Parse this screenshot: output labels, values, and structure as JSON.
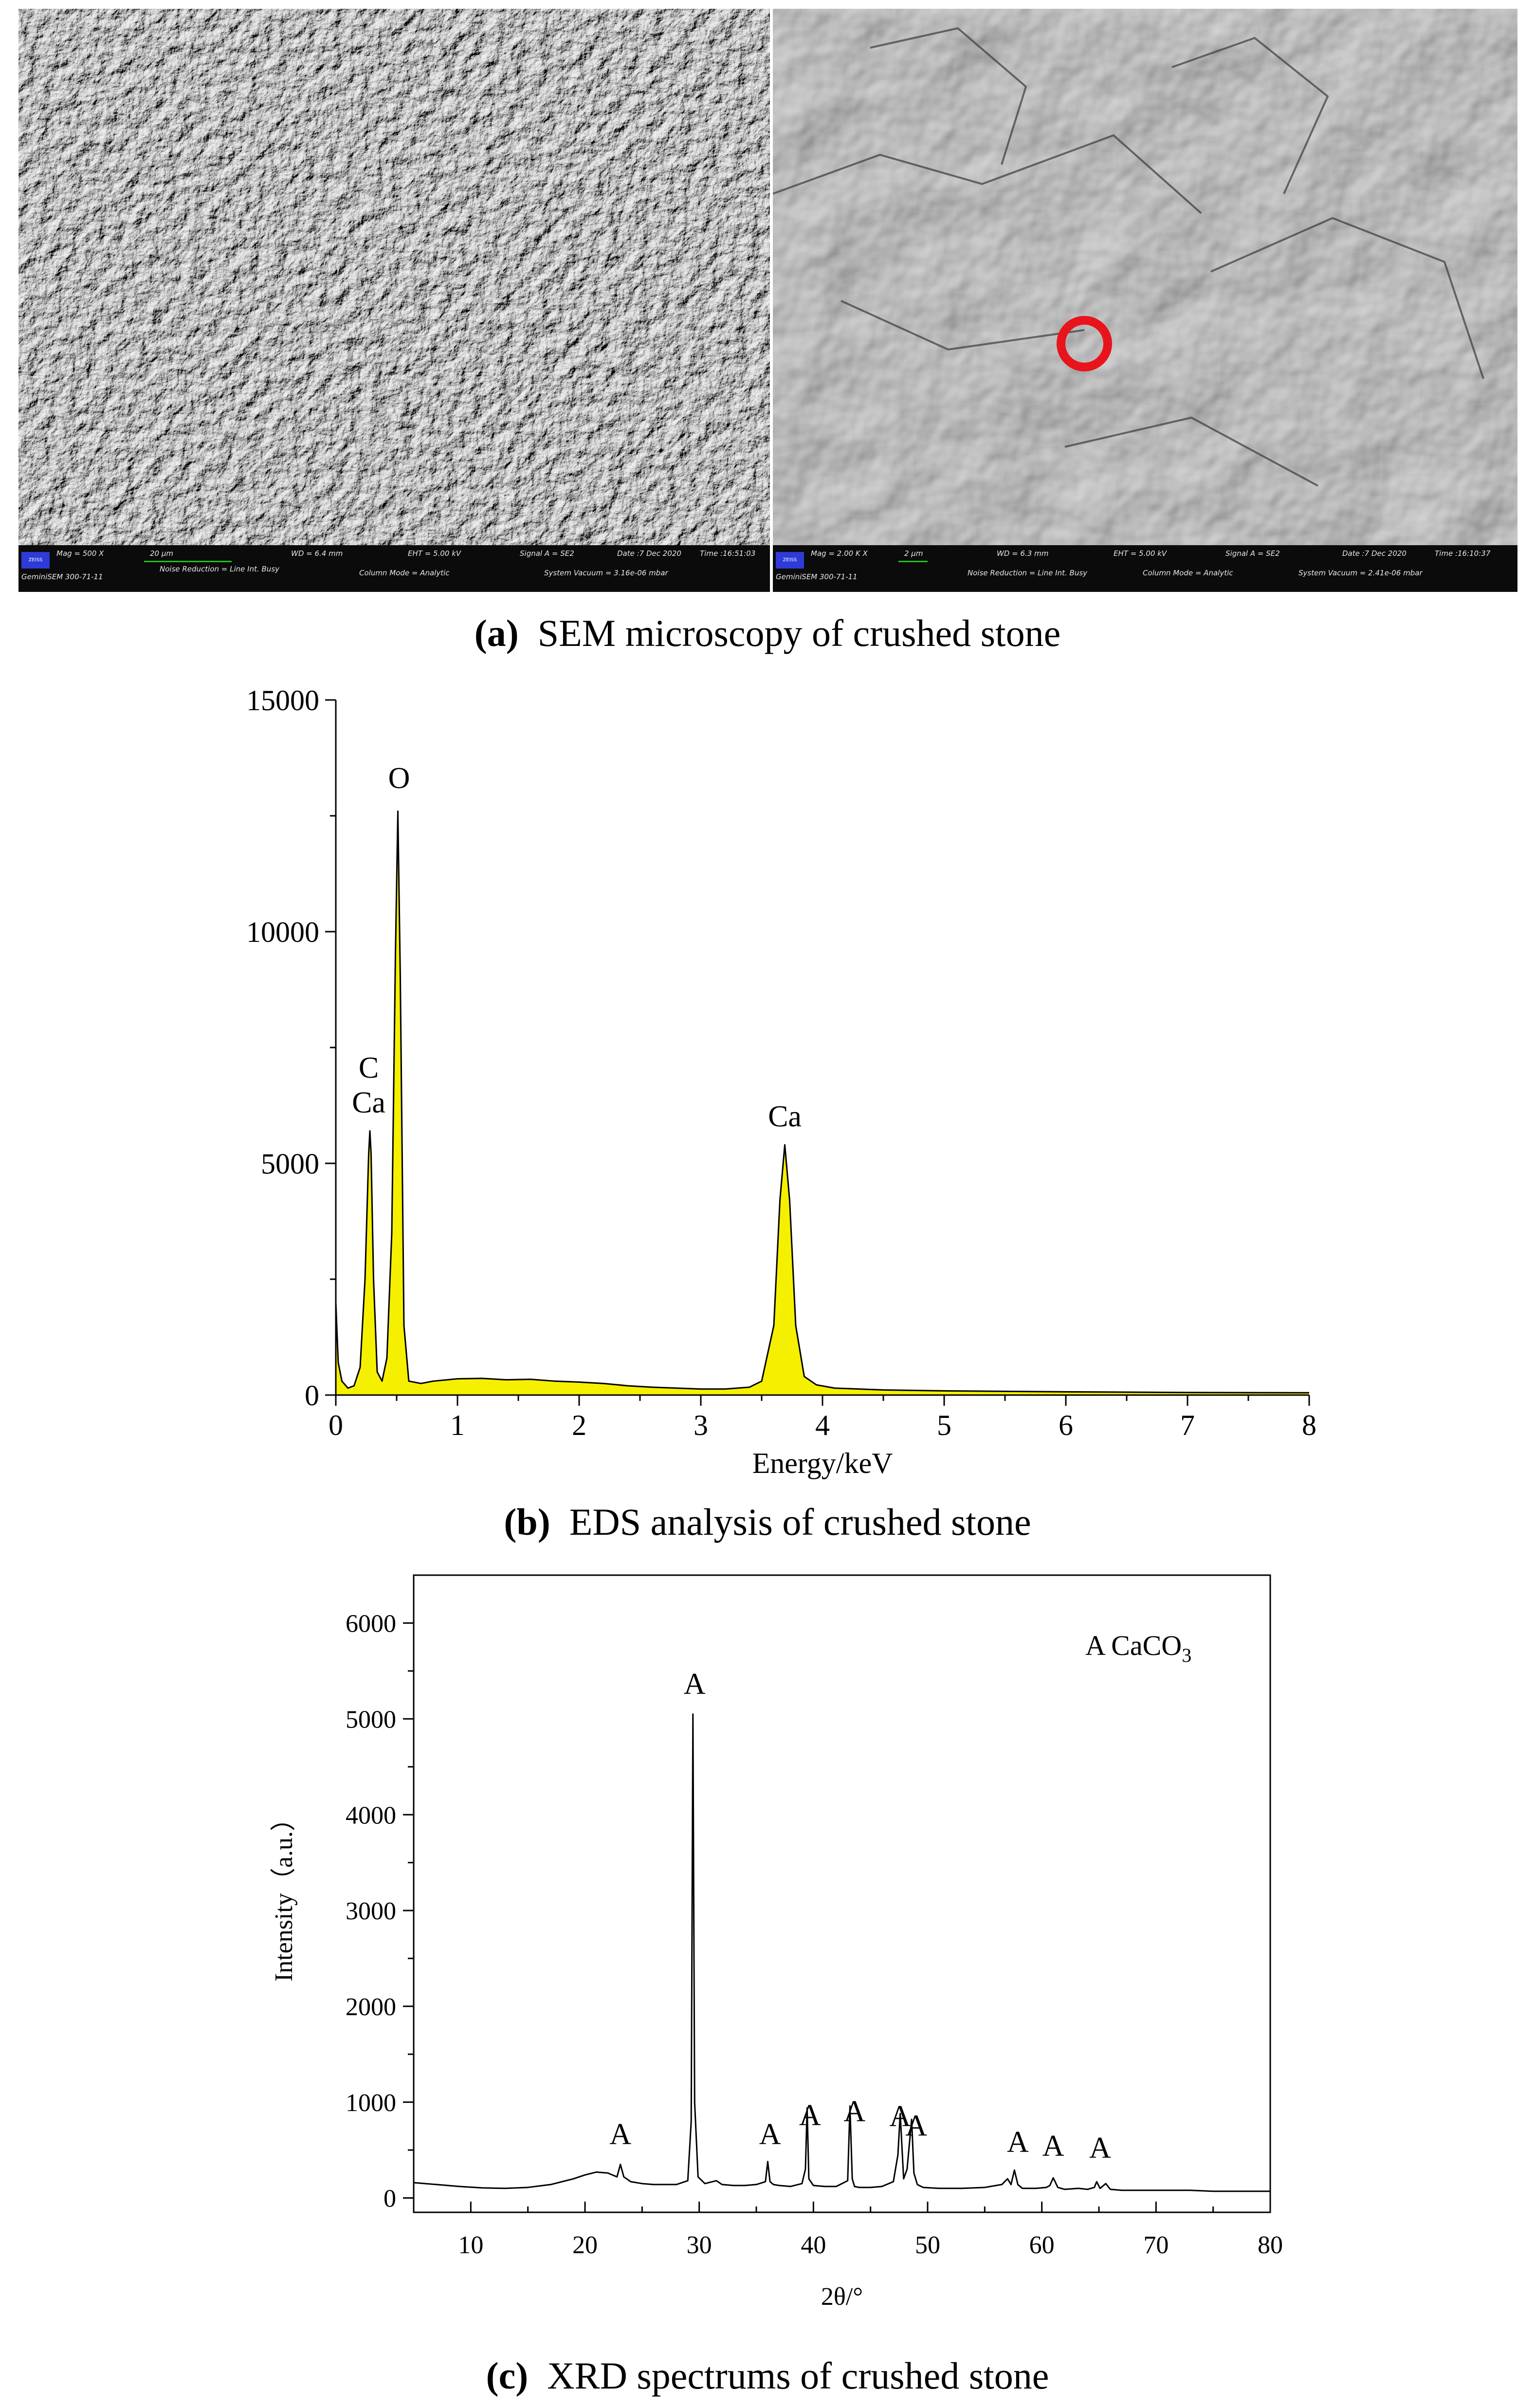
{
  "figure": {
    "panel_a": {
      "caption_label": "(a)",
      "caption_text": "SEM microscopy of crushed stone",
      "left_image": {
        "logo": "ZEISS",
        "mag": "Mag = 500 X",
        "scale_bar": "20 µm",
        "wd": "WD = 6.4 mm",
        "eht": "EHT = 5.00 kV",
        "signal": "Signal A = SE2",
        "date": "Date :7 Dec 2020",
        "time": "Time :16:51:03",
        "instrument": "GeminiSEM 300-71-11",
        "noise": "Noise Reduction = Line Int. Busy",
        "column": "Column Mode = Analytic",
        "vacuum": "System Vacuum = 3.16e-06 mbar"
      },
      "right_image": {
        "logo": "ZEISS",
        "mag": "Mag = 2.00 K X",
        "scale_bar": "2 µm",
        "wd": "WD = 6.3 mm",
        "eht": "EHT = 5.00 kV",
        "signal": "Signal A = SE2",
        "date": "Date :7 Dec 2020",
        "time": "Time :16:10:37",
        "instrument": "GeminiSEM 300-71-11",
        "noise": "Noise Reduction = Line Int. Busy",
        "column": "Column Mode = Analytic",
        "vacuum": "System Vacuum = 2.41e-06 mbar",
        "marker_color": "#e8141c"
      }
    },
    "panel_b": {
      "caption_label": "(b)",
      "caption_text": "EDS analysis of crushed stone",
      "fill_color": "#f5f000"
    },
    "panel_c": {
      "caption_label": "(c)",
      "caption_text": "XRD spectrums of crushed stone",
      "legend_prefix": "A CaCO",
      "legend_sub": "3"
    }
  },
  "chart_data": [
    {
      "type": "area",
      "id": "eds",
      "title": "",
      "xlabel": "Energy/keV",
      "ylabel": "",
      "xlim": [
        0,
        8
      ],
      "ylim": [
        0,
        15000
      ],
      "xticks": [
        0,
        1,
        2,
        3,
        4,
        5,
        6,
        7,
        8
      ],
      "yticks": [
        0,
        5000,
        10000,
        15000
      ],
      "grid": false,
      "x": [
        0,
        0.02,
        0.05,
        0.1,
        0.15,
        0.2,
        0.24,
        0.27,
        0.28,
        0.29,
        0.31,
        0.34,
        0.38,
        0.42,
        0.46,
        0.49,
        0.51,
        0.53,
        0.56,
        0.6,
        0.7,
        0.8,
        1.0,
        1.2,
        1.4,
        1.6,
        1.8,
        2.0,
        2.2,
        2.4,
        2.6,
        2.8,
        3.0,
        3.2,
        3.4,
        3.5,
        3.6,
        3.65,
        3.69,
        3.73,
        3.78,
        3.85,
        3.95,
        4.1,
        4.5,
        5.0,
        6.0,
        7.0,
        8.0
      ],
      "y": [
        2000,
        700,
        300,
        150,
        200,
        600,
        2500,
        5200,
        5700,
        5200,
        2500,
        500,
        300,
        800,
        3500,
        9500,
        12600,
        9000,
        1500,
        300,
        250,
        300,
        350,
        360,
        330,
        340,
        300,
        280,
        250,
        200,
        170,
        150,
        130,
        130,
        170,
        300,
        1500,
        4200,
        5400,
        4200,
        1500,
        400,
        220,
        150,
        110,
        90,
        70,
        55,
        50
      ],
      "annotations": [
        {
          "text": "O",
          "x": 0.52,
          "y": 13100
        },
        {
          "text": "C",
          "x": 0.27,
          "y": 6850
        },
        {
          "text": "Ca",
          "x": 0.27,
          "y": 6100
        },
        {
          "text": "Ca",
          "x": 3.69,
          "y": 5800
        }
      ]
    },
    {
      "type": "line",
      "id": "xrd",
      "title": "",
      "xlabel": "2θ/°",
      "ylabel": "Intensity（a.u.）",
      "xlim": [
        5,
        80
      ],
      "ylim": [
        -150,
        6500
      ],
      "xticks": [
        10,
        20,
        30,
        40,
        50,
        60,
        70,
        80
      ],
      "yticks": [
        0,
        1000,
        2000,
        3000,
        4000,
        5000,
        6000
      ],
      "grid": false,
      "x": [
        5,
        7,
        9,
        11,
        13,
        15,
        17,
        19,
        20,
        21,
        22,
        22.8,
        23.1,
        23.4,
        24,
        25,
        26,
        27,
        28,
        29,
        29.3,
        29.45,
        29.6,
        29.9,
        30.5,
        31.5,
        32,
        33,
        34,
        35,
        35.8,
        36.0,
        36.2,
        36.5,
        37,
        38,
        39,
        39.3,
        39.45,
        39.6,
        40,
        41,
        42,
        43,
        43.2,
        43.4,
        43.6,
        44,
        45,
        46,
        47,
        47.4,
        47.6,
        47.9,
        48.2,
        48.6,
        48.8,
        49.1,
        49.6,
        51,
        53,
        55,
        56.5,
        57.0,
        57.3,
        57.6,
        57.9,
        58.3,
        59.5,
        60.4,
        60.7,
        61.0,
        61.4,
        62,
        63.2,
        64,
        64.6,
        64.8,
        65.1,
        65.6,
        66,
        67,
        69,
        71,
        73,
        75,
        77,
        80
      ],
      "y": [
        160,
        140,
        120,
        105,
        100,
        110,
        140,
        200,
        240,
        270,
        260,
        220,
        350,
        220,
        170,
        150,
        140,
        140,
        140,
        180,
        800,
        5050,
        1000,
        220,
        150,
        180,
        140,
        130,
        130,
        140,
        170,
        380,
        170,
        140,
        130,
        120,
        150,
        300,
        940,
        200,
        130,
        120,
        120,
        180,
        960,
        200,
        120,
        110,
        110,
        120,
        170,
        450,
        880,
        200,
        300,
        820,
        260,
        140,
        110,
        100,
        100,
        110,
        140,
        200,
        140,
        290,
        140,
        100,
        100,
        110,
        130,
        210,
        110,
        90,
        100,
        90,
        110,
        170,
        100,
        150,
        90,
        80,
        80,
        80,
        80,
        70,
        70,
        70
      ],
      "annotations": [
        {
          "text": "A",
          "x": 23.1,
          "y": 560
        },
        {
          "text": "A",
          "x": 29.6,
          "y": 5260
        },
        {
          "text": "A",
          "x": 36.2,
          "y": 560
        },
        {
          "text": "A",
          "x": 39.7,
          "y": 760
        },
        {
          "text": "A",
          "x": 43.6,
          "y": 800
        },
        {
          "text": "A",
          "x": 47.6,
          "y": 750
        },
        {
          "text": "A",
          "x": 49.0,
          "y": 650
        },
        {
          "text": "A",
          "x": 57.9,
          "y": 480
        },
        {
          "text": "A",
          "x": 61.0,
          "y": 440
        },
        {
          "text": "A",
          "x": 65.1,
          "y": 420
        }
      ]
    }
  ]
}
